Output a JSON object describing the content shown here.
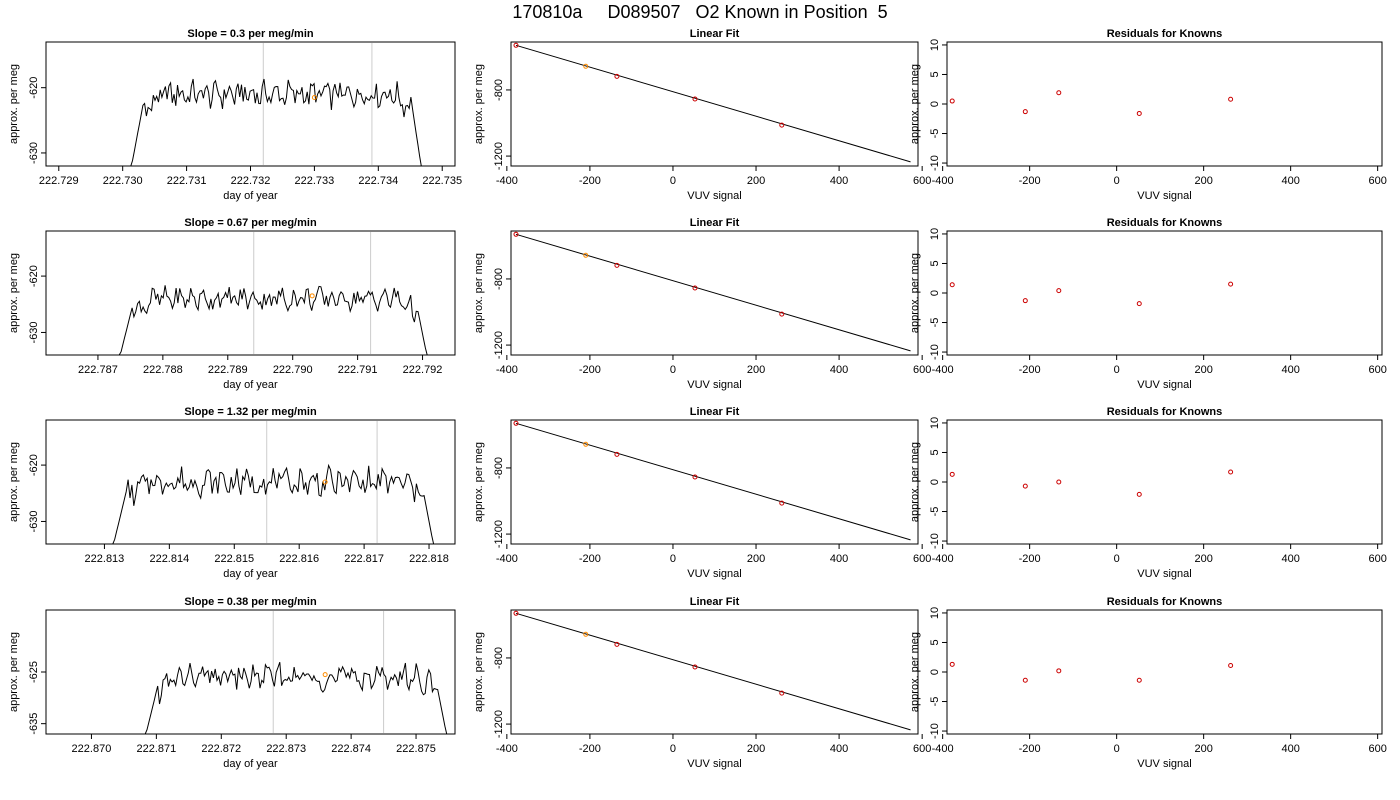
{
  "header": {
    "title": "170810a     D089507   O2 Known in Position  5"
  },
  "colors": {
    "line": "#000000",
    "grid": "#cccccc",
    "known": "#cc0000",
    "highlight": "#ff8c00",
    "frame": "#000000"
  },
  "chart_data": [
    {
      "type": "line",
      "title": "Slope =  0.3  per meg/min",
      "xlabel": "day of year",
      "ylabel": "approx. per meg",
      "xlim": [
        222.7288,
        222.7352
      ],
      "ylim": [
        -632,
        -613
      ],
      "xticks": [
        "222.729",
        "222.730",
        "222.731",
        "222.732",
        "222.733",
        "222.734",
        "222.735"
      ],
      "yticks": [
        "-620",
        "-630"
      ],
      "ytick_values": [
        -620,
        -630
      ],
      "xtick_values": [
        222.729,
        222.73,
        222.731,
        222.732,
        222.733,
        222.734,
        222.735
      ],
      "data_range": [
        222.7301,
        222.7347
      ],
      "gray_lines": [
        222.7322,
        222.7339
      ],
      "highlight_point": {
        "x": 222.733,
        "y": -621.5
      },
      "wiggle_amp": 2.5,
      "center": -621.0
    },
    {
      "type": "scatter",
      "title": "Linear Fit",
      "xlabel": "VUV signal",
      "ylabel": "approx. per meg",
      "xlim": [
        -390,
        590
      ],
      "ylim": [
        -1260,
        -510
      ],
      "xticks": [
        "-400",
        "-200",
        "0",
        "200",
        "400",
        "600"
      ],
      "xtick_values": [
        -400,
        -200,
        0,
        200,
        400,
        600
      ],
      "yticks": [
        "-800",
        "-1200"
      ],
      "ytick_values": [
        -800,
        -1200
      ],
      "x": [
        -378,
        -210,
        -135,
        53,
        262
      ],
      "y": [
        -530,
        -657,
        -718,
        -855,
        -1013
      ],
      "highlight_index": 1,
      "fit_line": {
        "x0": -378,
        "y0": -530,
        "x1": 572,
        "y1": -1235
      }
    },
    {
      "type": "scatter",
      "title": "Residuals for Knowns",
      "xlabel": "VUV signal",
      "ylabel": "approx. per meg",
      "xlim": [
        -390,
        610
      ],
      "ylim": [
        -10.5,
        10.5
      ],
      "xticks": [
        "-400",
        "-200",
        "0",
        "200",
        "400",
        "600"
      ],
      "xtick_values": [
        -400,
        -200,
        0,
        200,
        400,
        600
      ],
      "yticks": [
        "-10",
        "-5",
        "0",
        "5",
        "10"
      ],
      "ytick_values": [
        -10,
        -5,
        0,
        5,
        10
      ],
      "x": [
        -378,
        -210,
        -133,
        52,
        262
      ],
      "y": [
        0.5,
        -1.3,
        1.9,
        -1.6,
        0.8
      ]
    },
    {
      "type": "line",
      "title": "Slope =  0.67  per meg/min",
      "xlabel": "day of year",
      "ylabel": "approx. per meg",
      "xlim": [
        222.7862,
        222.7925
      ],
      "ylim": [
        -634,
        -612
      ],
      "xticks": [
        "222.787",
        "222.788",
        "222.789",
        "222.790",
        "222.791",
        "222.792"
      ],
      "xtick_values": [
        222.787,
        222.788,
        222.789,
        222.79,
        222.791,
        222.792
      ],
      "yticks": [
        "-620",
        "-630"
      ],
      "ytick_values": [
        -620,
        -630
      ],
      "data_range": [
        222.7873,
        222.7921
      ],
      "gray_lines": [
        222.7894,
        222.7912
      ],
      "highlight_point": {
        "x": 222.7903,
        "y": -623.5
      },
      "wiggle_amp": 2.5,
      "center": -624.0
    },
    {
      "type": "scatter",
      "title": "Linear Fit",
      "xlabel": "VUV signal",
      "ylabel": "approx. per meg",
      "xlim": [
        -390,
        590
      ],
      "ylim": [
        -1260,
        -510
      ],
      "xticks": [
        "-400",
        "-200",
        "0",
        "200",
        "400",
        "600"
      ],
      "xtick_values": [
        -400,
        -200,
        0,
        200,
        400,
        600
      ],
      "yticks": [
        "-800",
        "-1200"
      ],
      "ytick_values": [
        -800,
        -1200
      ],
      "x": [
        -378,
        -210,
        -135,
        53,
        262
      ],
      "y": [
        -530,
        -657,
        -718,
        -855,
        -1013
      ],
      "highlight_index": 1,
      "fit_line": {
        "x0": -378,
        "y0": -530,
        "x1": 572,
        "y1": -1235
      }
    },
    {
      "type": "scatter",
      "title": "Residuals for Knowns",
      "xlabel": "VUV signal",
      "ylabel": "approx. per meg",
      "xlim": [
        -390,
        610
      ],
      "ylim": [
        -10.5,
        10.5
      ],
      "xticks": [
        "-400",
        "-200",
        "0",
        "200",
        "400",
        "600"
      ],
      "xtick_values": [
        -400,
        -200,
        0,
        200,
        400,
        600
      ],
      "yticks": [
        "-10",
        "-5",
        "0",
        "5",
        "10"
      ],
      "ytick_values": [
        -10,
        -5,
        0,
        5,
        10
      ],
      "x": [
        -378,
        -210,
        -133,
        52,
        262
      ],
      "y": [
        1.4,
        -1.3,
        0.4,
        -1.8,
        1.5
      ]
    },
    {
      "type": "line",
      "title": "Slope =  1.32  per meg/min",
      "xlabel": "day of year",
      "ylabel": "approx. per meg",
      "xlim": [
        222.8121,
        222.8184
      ],
      "ylim": [
        -634,
        -612
      ],
      "xticks": [
        "222.813",
        "222.814",
        "222.815",
        "222.816",
        "222.817",
        "222.818"
      ],
      "xtick_values": [
        222.813,
        222.814,
        222.815,
        222.816,
        222.817,
        222.818
      ],
      "yticks": [
        "-620",
        "-630"
      ],
      "ytick_values": [
        -620,
        -630
      ],
      "data_range": [
        222.8131,
        222.8181
      ],
      "gray_lines": [
        222.8155,
        222.8172
      ],
      "highlight_point": {
        "x": 222.8164,
        "y": -623.0
      },
      "wiggle_amp": 3.0,
      "center": -623.0
    },
    {
      "type": "scatter",
      "title": "Linear Fit",
      "xlabel": "VUV signal",
      "ylabel": "approx. per meg",
      "xlim": [
        -390,
        590
      ],
      "ylim": [
        -1260,
        -510
      ],
      "xticks": [
        "-400",
        "-200",
        "0",
        "200",
        "400",
        "600"
      ],
      "xtick_values": [
        -400,
        -200,
        0,
        200,
        400,
        600
      ],
      "yticks": [
        "-800",
        "-1200"
      ],
      "ytick_values": [
        -800,
        -1200
      ],
      "x": [
        -378,
        -210,
        -135,
        53,
        262
      ],
      "y": [
        -530,
        -657,
        -718,
        -855,
        -1013
      ],
      "highlight_index": 1,
      "fit_line": {
        "x0": -378,
        "y0": -530,
        "x1": 572,
        "y1": -1235
      }
    },
    {
      "type": "scatter",
      "title": "Residuals for Knowns",
      "xlabel": "VUV signal",
      "ylabel": "approx. per meg",
      "xlim": [
        -390,
        610
      ],
      "ylim": [
        -10.5,
        10.5
      ],
      "xticks": [
        "-400",
        "-200",
        "0",
        "200",
        "400",
        "600"
      ],
      "xtick_values": [
        -400,
        -200,
        0,
        200,
        400,
        600
      ],
      "yticks": [
        "-10",
        "-5",
        "0",
        "5",
        "10"
      ],
      "ytick_values": [
        -10,
        -5,
        0,
        5,
        10
      ],
      "x": [
        -378,
        -210,
        -133,
        52,
        262
      ],
      "y": [
        1.3,
        -0.7,
        0.0,
        -2.1,
        1.7
      ]
    },
    {
      "type": "line",
      "title": "Slope =  0.38  per meg/min",
      "xlabel": "day of year",
      "ylabel": "approx. per meg",
      "xlim": [
        222.8693,
        222.8756
      ],
      "ylim": [
        -637,
        -613
      ],
      "xticks": [
        "222.870",
        "222.871",
        "222.872",
        "222.873",
        "222.874",
        "222.875"
      ],
      "xtick_values": [
        222.87,
        222.871,
        222.872,
        222.873,
        222.874,
        222.875
      ],
      "yticks": [
        "-625",
        "-635"
      ],
      "ytick_values": [
        -625,
        -635
      ],
      "data_range": [
        222.8708,
        222.8755
      ],
      "gray_lines": [
        222.8728,
        222.8745
      ],
      "highlight_point": {
        "x": 222.8736,
        "y": -625.5
      },
      "wiggle_amp": 3.0,
      "center": -626.0
    },
    {
      "type": "scatter",
      "title": "Linear Fit",
      "xlabel": "VUV signal",
      "ylabel": "approx. per meg",
      "xlim": [
        -390,
        590
      ],
      "ylim": [
        -1260,
        -510
      ],
      "xticks": [
        "-400",
        "-200",
        "0",
        "200",
        "400",
        "600"
      ],
      "xtick_values": [
        -400,
        -200,
        0,
        200,
        400,
        600
      ],
      "yticks": [
        "-800",
        "-1200"
      ],
      "ytick_values": [
        -800,
        -1200
      ],
      "x": [
        -378,
        -210,
        -135,
        53,
        262
      ],
      "y": [
        -530,
        -657,
        -718,
        -855,
        -1013
      ],
      "highlight_index": 1,
      "fit_line": {
        "x0": -378,
        "y0": -530,
        "x1": 572,
        "y1": -1235
      }
    },
    {
      "type": "scatter",
      "title": "Residuals for Knowns",
      "xlabel": "VUV signal",
      "ylabel": "approx. per meg",
      "xlim": [
        -390,
        610
      ],
      "ylim": [
        -10.5,
        10.5
      ],
      "xticks": [
        "-400",
        "-200",
        "0",
        "200",
        "400",
        "600"
      ],
      "xtick_values": [
        -400,
        -200,
        0,
        200,
        400,
        600
      ],
      "yticks": [
        "-10",
        "-5",
        "0",
        "5",
        "10"
      ],
      "ytick_values": [
        -10,
        -5,
        0,
        5,
        10
      ],
      "x": [
        -378,
        -210,
        -133,
        52,
        262
      ],
      "y": [
        1.3,
        -1.4,
        0.2,
        -1.4,
        1.1
      ]
    }
  ]
}
